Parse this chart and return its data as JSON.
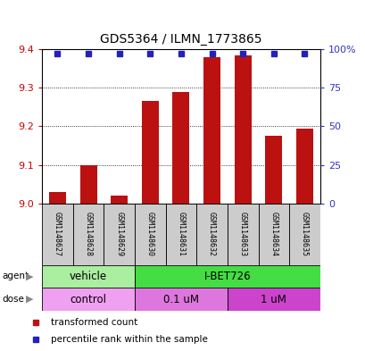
{
  "title": "GDS5364 / ILMN_1773865",
  "samples": [
    "GSM1148627",
    "GSM1148628",
    "GSM1148629",
    "GSM1148630",
    "GSM1148631",
    "GSM1148632",
    "GSM1148633",
    "GSM1148634",
    "GSM1148635"
  ],
  "bar_values": [
    9.03,
    9.1,
    9.02,
    9.265,
    9.29,
    9.38,
    9.385,
    9.175,
    9.195
  ],
  "percentile_values": [
    97,
    97,
    97,
    97,
    97,
    97,
    97,
    97,
    97
  ],
  "ymin": 9.0,
  "ymax": 9.4,
  "yticks": [
    9.0,
    9.1,
    9.2,
    9.3,
    9.4
  ],
  "right_yticks": [
    0,
    25,
    50,
    75,
    100
  ],
  "right_ylabels": [
    "0",
    "25",
    "50",
    "75",
    "100%"
  ],
  "bar_color": "#bb1111",
  "dot_color": "#2222bb",
  "agent_groups": [
    {
      "label": "vehicle",
      "start": 0,
      "end": 3,
      "color": "#aaeea0"
    },
    {
      "label": "I-BET726",
      "start": 3,
      "end": 9,
      "color": "#44dd44"
    }
  ],
  "dose_groups": [
    {
      "label": "control",
      "start": 0,
      "end": 3,
      "color": "#f0a0f0"
    },
    {
      "label": "0.1 uM",
      "start": 3,
      "end": 6,
      "color": "#dd77dd"
    },
    {
      "label": "1 uM",
      "start": 6,
      "end": 9,
      "color": "#cc44cc"
    }
  ],
  "legend_items": [
    {
      "color": "#bb1111",
      "label": "transformed count"
    },
    {
      "color": "#2222bb",
      "label": "percentile rank within the sample"
    }
  ],
  "left_label_color": "#cc0000",
  "right_label_color": "#3333cc",
  "sample_box_color": "#cccccc",
  "grid_color": "#555555",
  "title_fontsize": 10,
  "tick_fontsize": 8,
  "label_fontsize": 7.5
}
